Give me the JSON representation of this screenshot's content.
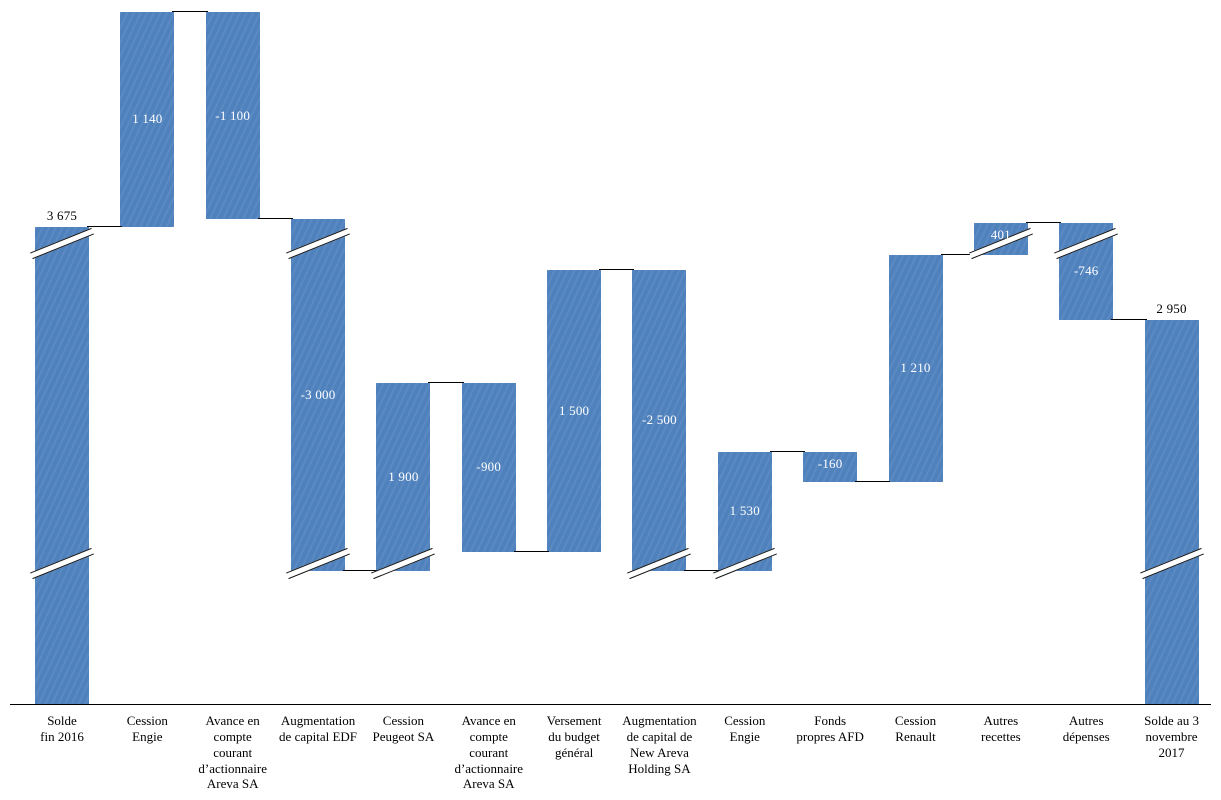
{
  "chart_data": {
    "type": "waterfall",
    "title": "",
    "bar_color": "#4f81bd",
    "axis_color": "#000000",
    "value_label_color_inside": "#ffffff",
    "value_label_color_outside": "#000000",
    "legend": "none",
    "grid": "off",
    "axis_breaks": [
      {
        "from": 750,
        "to": 1650
      },
      {
        "from": 3350,
        "to": 3580
      }
    ],
    "start_value": 3675,
    "end_value": 2950,
    "bars": [
      {
        "id": "solde-fin-2016",
        "category_lines": [
          "Solde",
          "fin 2016"
        ],
        "value": 3675,
        "value_label": "3 675",
        "kind": "total",
        "label_position": "above"
      },
      {
        "id": "cession-engie-1",
        "category_lines": [
          "Cession",
          "Engie"
        ],
        "value": 1140,
        "value_label": "1 140",
        "kind": "delta",
        "label_position": "inside"
      },
      {
        "id": "avance-actionnaire-areva-1",
        "category_lines": [
          "Avance en",
          "compte",
          "courant",
          "d’actionnaire",
          "Areva SA"
        ],
        "value": -1100,
        "value_label": "-1 100",
        "kind": "delta",
        "label_position": "inside"
      },
      {
        "id": "augmentation-capital-edf",
        "category_lines": [
          "Augmentation",
          "de capital EDF"
        ],
        "value": -3000,
        "value_label": "-3 000",
        "kind": "delta",
        "label_position": "inside"
      },
      {
        "id": "cession-peugeot-sa",
        "category_lines": [
          "Cession",
          "Peugeot SA"
        ],
        "value": 1900,
        "value_label": "1 900",
        "kind": "delta",
        "label_position": "inside"
      },
      {
        "id": "avance-actionnaire-areva-2",
        "category_lines": [
          "Avance en",
          "compte",
          "courant",
          "d’actionnaire",
          "Areva SA"
        ],
        "value": -900,
        "value_label": "-900",
        "kind": "delta",
        "label_position": "inside"
      },
      {
        "id": "versement-budget-general",
        "category_lines": [
          "Versement",
          "du budget",
          "général"
        ],
        "value": 1500,
        "value_label": "1 500",
        "kind": "delta",
        "label_position": "inside"
      },
      {
        "id": "augmentation-capital-new-areva",
        "category_lines": [
          "Augmentation",
          "de capital de",
          "New Areva",
          "Holding SA"
        ],
        "value": -2500,
        "value_label": "-2 500",
        "kind": "delta",
        "label_position": "inside"
      },
      {
        "id": "cession-engie-2",
        "category_lines": [
          "Cession",
          "Engie"
        ],
        "value": 1530,
        "value_label": "1 530",
        "kind": "delta",
        "label_position": "inside"
      },
      {
        "id": "fonds-propres-afd",
        "category_lines": [
          "Fonds",
          "propres AFD"
        ],
        "value": -160,
        "value_label": "-160",
        "kind": "delta",
        "label_position": "inside"
      },
      {
        "id": "cession-renault",
        "category_lines": [
          "Cession",
          "Renault"
        ],
        "value": 1210,
        "value_label": "1 210",
        "kind": "delta",
        "label_position": "inside"
      },
      {
        "id": "autres-recettes",
        "category_lines": [
          "Autres",
          "recettes"
        ],
        "value": 401,
        "value_label": "401",
        "kind": "delta",
        "label_position": "inside"
      },
      {
        "id": "autres-depenses",
        "category_lines": [
          "Autres",
          "dépenses"
        ],
        "value": -746,
        "value_label": "-746",
        "kind": "delta",
        "label_position": "inside"
      },
      {
        "id": "solde-3-novembre-2017",
        "category_lines": [
          "Solde au 3",
          "novembre",
          "2017"
        ],
        "value": 2950,
        "value_label": "2 950",
        "kind": "total",
        "label_position": "above"
      }
    ]
  }
}
